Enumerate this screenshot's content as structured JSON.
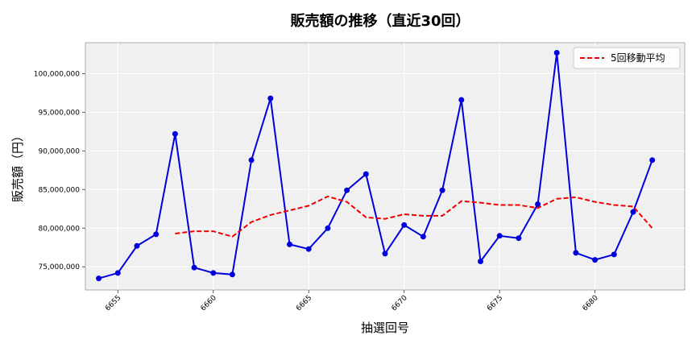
{
  "chart_data": {
    "type": "line",
    "title": "販売額の推移（直近30回）",
    "xlabel": "抽選回号",
    "ylabel": "販売額（円）",
    "x": [
      6654,
      6655,
      6656,
      6657,
      6658,
      6659,
      6660,
      6661,
      6662,
      6663,
      6664,
      6665,
      6666,
      6667,
      6668,
      6669,
      6670,
      6671,
      6672,
      6673,
      6674,
      6675,
      6676,
      6677,
      6678,
      6679,
      6680,
      6681,
      6682,
      6683
    ],
    "x_ticks": [
      6655,
      6660,
      6665,
      6670,
      6675,
      6680
    ],
    "x_tick_labels": [
      "6655",
      "6660",
      "6665",
      "6670",
      "6675",
      "6680"
    ],
    "xlim": [
      6653.3,
      6684.7
    ],
    "ylim": [
      72000000,
      104000000
    ],
    "y_ticks": [
      75000000,
      80000000,
      85000000,
      90000000,
      95000000,
      100000000
    ],
    "y_tick_labels": [
      "75,000,000",
      "80,000,000",
      "85,000,000",
      "90,000,000",
      "95,000,000",
      "100,000,000"
    ],
    "grid": true,
    "legend_position": "top-right",
    "series": [
      {
        "name": "",
        "color": "#0000dd",
        "style": "solid",
        "markers": true,
        "values": [
          73500000,
          74200000,
          77700000,
          79200000,
          92200000,
          74900000,
          74200000,
          74000000,
          88800000,
          96800000,
          77900000,
          77300000,
          80000000,
          84900000,
          87000000,
          76700000,
          80400000,
          78900000,
          84900000,
          96600000,
          75700000,
          79000000,
          78700000,
          83100000,
          102700000,
          76800000,
          75900000,
          76600000,
          82100000,
          88800000
        ]
      },
      {
        "name": "5回移動平均",
        "color": "#ee0000",
        "style": "dashed",
        "markers": false,
        "values": [
          null,
          null,
          null,
          null,
          79300000,
          79600000,
          79600000,
          78900000,
          80800000,
          81700000,
          82300000,
          82900000,
          84100000,
          83400000,
          81400000,
          81200000,
          81800000,
          81600000,
          81600000,
          83500000,
          83300000,
          83000000,
          83000000,
          82600000,
          83800000,
          84000000,
          83400000,
          83000000,
          82800000,
          80000000
        ]
      }
    ]
  }
}
